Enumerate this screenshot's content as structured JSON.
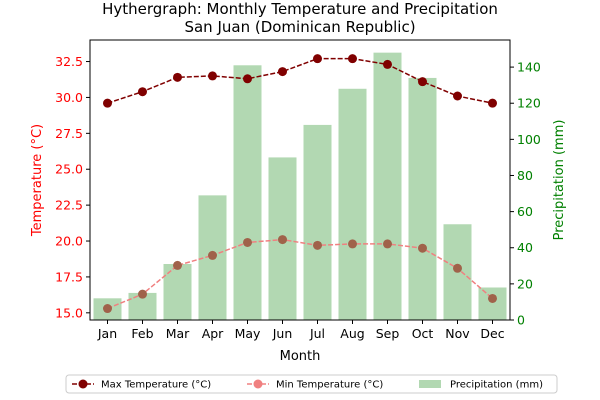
{
  "chart_data": {
    "type": "bar+line",
    "title": "Hythergraph: Monthly Temperature and Precipitation",
    "subtitle": "San Juan (Dominican Republic)",
    "xlabel": "Month",
    "ylabel_left": "Temperature (°C)",
    "ylabel_right": "Precipitation (mm)",
    "categories": [
      "Jan",
      "Feb",
      "Mar",
      "Apr",
      "May",
      "Jun",
      "Jul",
      "Aug",
      "Sep",
      "Oct",
      "Nov",
      "Dec"
    ],
    "ylim_left": [
      14.5,
      34.0
    ],
    "yticks_left": [
      "15.0",
      "17.5",
      "20.0",
      "22.5",
      "25.0",
      "27.5",
      "30.0",
      "32.5"
    ],
    "ylim_right": [
      0,
      155
    ],
    "yticks_right": [
      "0",
      "20",
      "40",
      "60",
      "80",
      "100",
      "120",
      "140"
    ],
    "series": [
      {
        "name": "Max Temperature (°C)",
        "type": "line",
        "axis": "left",
        "color": "#800000",
        "values": [
          29.6,
          30.4,
          31.4,
          31.5,
          31.3,
          31.8,
          32.7,
          32.7,
          32.3,
          31.1,
          30.1,
          29.6
        ]
      },
      {
        "name": "Min Temperature (°C)",
        "type": "line",
        "axis": "left",
        "color": "#f08080",
        "values": [
          15.3,
          16.3,
          18.3,
          19.0,
          19.9,
          20.1,
          19.7,
          19.8,
          19.8,
          19.5,
          18.1,
          16.0
        ]
      },
      {
        "name": "Precipitation (mm)",
        "type": "bar",
        "axis": "right",
        "color": "#b2d8b2",
        "values": [
          12,
          15,
          31,
          69,
          141,
          90,
          108,
          128,
          148,
          134,
          53,
          18
        ]
      }
    ],
    "colors": {
      "left_axis": "#ff0000",
      "right_axis": "#008000"
    },
    "legend": {
      "placement": "bottom-center"
    },
    "grid": false
  }
}
